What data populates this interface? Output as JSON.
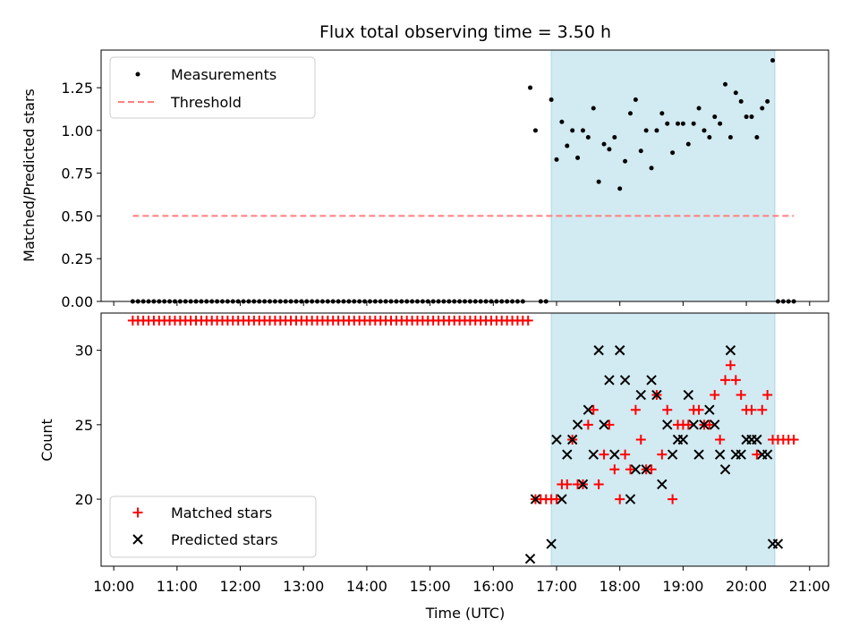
{
  "chart_data": {
    "type": "scatter",
    "title": "Flux total observing time = 3.50 h",
    "xlabel": "Time (UTC)",
    "x_ticks": [
      "10:00",
      "11:00",
      "12:00",
      "13:00",
      "14:00",
      "15:00",
      "16:00",
      "17:00",
      "18:00",
      "19:00",
      "20:00",
      "21:00"
    ],
    "xlim": [
      "09:48",
      "21:18"
    ],
    "colors": {
      "measurements": "#000000",
      "threshold": "#ff7f7f",
      "matched": "#ff0000",
      "predicted": "#000000",
      "observing_span": "#add8e6"
    },
    "observing_span": {
      "start": "16:55",
      "end": "20:27"
    },
    "panels": [
      {
        "ylabel": "Matched/Predicted stars",
        "ylim": [
          0,
          1.47
        ],
        "y_ticks": [
          "0.00",
          "0.25",
          "0.50",
          "0.75",
          "1.00",
          "1.25"
        ],
        "legend_position": "upper left",
        "series": [
          {
            "name": "Measurements",
            "kind": "dot",
            "zero_from": "10:18",
            "zero_to": "16:30",
            "zero_step_min": 5,
            "x": [
              "16:35",
              "16:40",
              "16:45",
              "16:50",
              "16:55",
              "17:00",
              "17:05",
              "17:10",
              "17:15",
              "17:20",
              "17:25",
              "17:30",
              "17:35",
              "17:40",
              "17:45",
              "17:50",
              "17:55",
              "18:00",
              "18:05",
              "18:10",
              "18:15",
              "18:20",
              "18:25",
              "18:30",
              "18:35",
              "18:40",
              "18:45",
              "18:50",
              "18:55",
              "19:00",
              "19:05",
              "19:10",
              "19:15",
              "19:20",
              "19:25",
              "19:30",
              "19:35",
              "19:40",
              "19:45",
              "19:50",
              "19:55",
              "20:00",
              "20:05",
              "20:10",
              "20:15",
              "20:20",
              "20:25",
              "20:30",
              "20:35",
              "20:40",
              "20:45"
            ],
            "y": [
              1.25,
              1.0,
              0.0,
              0.0,
              1.18,
              0.83,
              1.05,
              0.91,
              1.0,
              0.84,
              1.0,
              0.96,
              1.13,
              0.7,
              0.92,
              0.89,
              0.96,
              0.66,
              0.82,
              1.1,
              1.18,
              0.88,
              1.0,
              0.78,
              1.0,
              1.1,
              1.04,
              0.87,
              1.04,
              1.04,
              0.92,
              1.04,
              1.13,
              1.0,
              0.96,
              1.08,
              1.04,
              1.27,
              0.96,
              1.22,
              1.17,
              1.08,
              1.08,
              0.96,
              1.13,
              1.17,
              1.41,
              0.0,
              0.0,
              0.0,
              0.0
            ]
          },
          {
            "name": "Threshold",
            "kind": "dashed-line",
            "x": [
              "10:18",
              "20:45"
            ],
            "y": [
              0.5,
              0.5
            ]
          }
        ]
      },
      {
        "ylabel": "Count",
        "ylim": [
          15.5,
          32.5
        ],
        "y_ticks": [
          "20",
          "25",
          "30"
        ],
        "legend_position": "lower left",
        "series": [
          {
            "name": "Matched stars",
            "kind": "plus",
            "const_from": "10:18",
            "const_to": "16:35",
            "const_step_min": 5,
            "const_value": 32,
            "x": [
              "16:40",
              "16:45",
              "16:50",
              "16:55",
              "17:00",
              "17:05",
              "17:10",
              "17:15",
              "17:20",
              "17:25",
              "17:30",
              "17:35",
              "17:40",
              "17:45",
              "17:50",
              "17:55",
              "18:00",
              "18:05",
              "18:10",
              "18:15",
              "18:20",
              "18:25",
              "18:30",
              "18:35",
              "18:40",
              "18:45",
              "18:50",
              "18:55",
              "19:00",
              "19:05",
              "19:10",
              "19:15",
              "19:20",
              "19:25",
              "19:30",
              "19:35",
              "19:40",
              "19:45",
              "19:50",
              "19:55",
              "20:00",
              "20:05",
              "20:10",
              "20:15",
              "20:20",
              "20:25",
              "20:30",
              "20:35",
              "20:40",
              "20:45"
            ],
            "y": [
              20,
              20,
              20,
              20,
              20,
              21,
              21,
              24,
              21,
              21,
              25,
              26,
              21,
              23,
              25,
              22,
              20,
              23,
              22,
              26,
              24,
              22,
              22,
              27,
              23,
              26,
              20,
              25,
              25,
              25,
              26,
              26,
              25,
              25,
              27,
              24,
              28,
              29,
              28,
              27,
              26,
              26,
              23,
              26,
              27,
              24,
              24,
              24,
              24,
              24
            ]
          },
          {
            "name": "Predicted stars",
            "kind": "cross",
            "x": [
              "16:35",
              "16:40",
              "16:55",
              "17:00",
              "17:05",
              "17:10",
              "17:15",
              "17:20",
              "17:25",
              "17:30",
              "17:35",
              "17:40",
              "17:45",
              "17:50",
              "17:55",
              "18:00",
              "18:05",
              "18:10",
              "18:15",
              "18:20",
              "18:25",
              "18:30",
              "18:35",
              "18:40",
              "18:45",
              "18:50",
              "18:55",
              "19:00",
              "19:05",
              "19:10",
              "19:15",
              "19:20",
              "19:25",
              "19:30",
              "19:35",
              "19:40",
              "19:45",
              "19:50",
              "19:55",
              "20:00",
              "20:05",
              "20:10",
              "20:15",
              "20:20",
              "20:25",
              "20:30"
            ],
            "y": [
              16,
              20,
              17,
              24,
              20,
              23,
              24,
              25,
              21,
              26,
              23,
              30,
              25,
              28,
              23,
              30,
              28,
              20,
              22,
              27,
              22,
              28,
              27,
              21,
              25,
              23,
              24,
              24,
              27,
              25,
              23,
              25,
              26,
              25,
              23,
              22,
              30,
              23,
              23,
              24,
              24,
              24,
              23,
              23,
              17,
              17
            ]
          }
        ]
      }
    ]
  }
}
